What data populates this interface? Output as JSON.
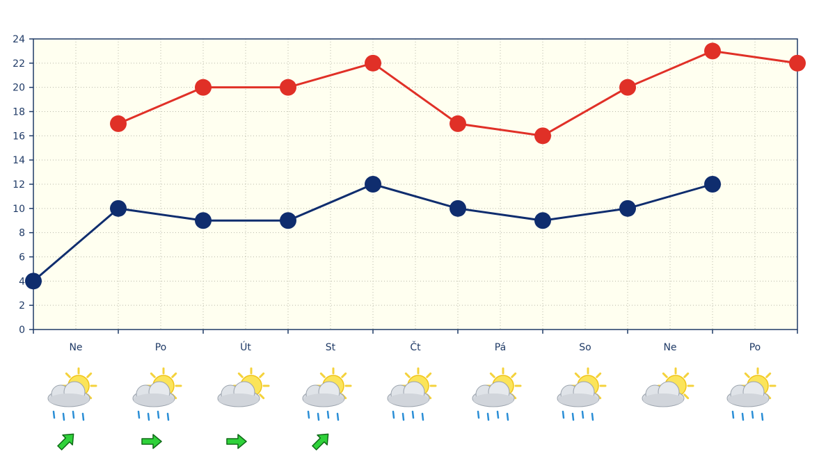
{
  "chart_data": {
    "type": "line",
    "title": "",
    "xlabel": "",
    "ylabel": "",
    "ylim": [
      0,
      24
    ],
    "yticks": [
      0,
      2,
      4,
      6,
      8,
      10,
      12,
      14,
      16,
      18,
      20,
      22,
      24
    ],
    "grid": true,
    "day_labels": [
      "Ne",
      "Po",
      "Út",
      "St",
      "Čt",
      "Pá",
      "So",
      "Ne",
      "Po"
    ],
    "series": [
      {
        "color": "#e03027",
        "points": [
          {
            "x": 0.5,
            "y": 17
          },
          {
            "x": 1.0,
            "y": 20
          },
          {
            "x": 1.5,
            "y": 20
          },
          {
            "x": 2.0,
            "y": 22
          },
          {
            "x": 2.5,
            "y": 17
          },
          {
            "x": 3.0,
            "y": 16
          },
          {
            "x": 3.5,
            "y": 20
          },
          {
            "x": 4.0,
            "y": 23
          },
          {
            "x": 4.5,
            "y": 22
          }
        ]
      },
      {
        "color": "#0f2d6e",
        "points": [
          {
            "x": 0.0,
            "y": 4
          },
          {
            "x": 0.5,
            "y": 10
          },
          {
            "x": 1.0,
            "y": 9
          },
          {
            "x": 1.5,
            "y": 9
          },
          {
            "x": 2.0,
            "y": 12
          },
          {
            "x": 2.5,
            "y": 10
          },
          {
            "x": 3.0,
            "y": 9
          },
          {
            "x": 3.5,
            "y": 10
          },
          {
            "x": 4.0,
            "y": 12
          }
        ]
      }
    ],
    "weather_icons": [
      {
        "icon": "partly-sunny-rain-icon"
      },
      {
        "icon": "partly-sunny-rain-icon"
      },
      {
        "icon": "partly-sunny-icon"
      },
      {
        "icon": "partly-sunny-rain-icon"
      },
      {
        "icon": "partly-sunny-rain-icon"
      },
      {
        "icon": "partly-sunny-rain-icon"
      },
      {
        "icon": "partly-sunny-rain-icon"
      },
      {
        "icon": "partly-sunny-icon"
      },
      {
        "icon": "partly-sunny-rain-icon"
      }
    ],
    "wind_arrows": [
      {
        "icon": "wind-arrow-northeast-icon",
        "angle": -45
      },
      {
        "icon": "wind-arrow-east-icon",
        "angle": 0
      },
      {
        "icon": "wind-arrow-east-icon",
        "angle": 0
      },
      {
        "icon": "wind-arrow-northeast-icon",
        "angle": -45
      }
    ],
    "colors": {
      "plot_background": "#fffff0",
      "axis": "#1f3a66",
      "grid": "#b8b8a8"
    }
  }
}
